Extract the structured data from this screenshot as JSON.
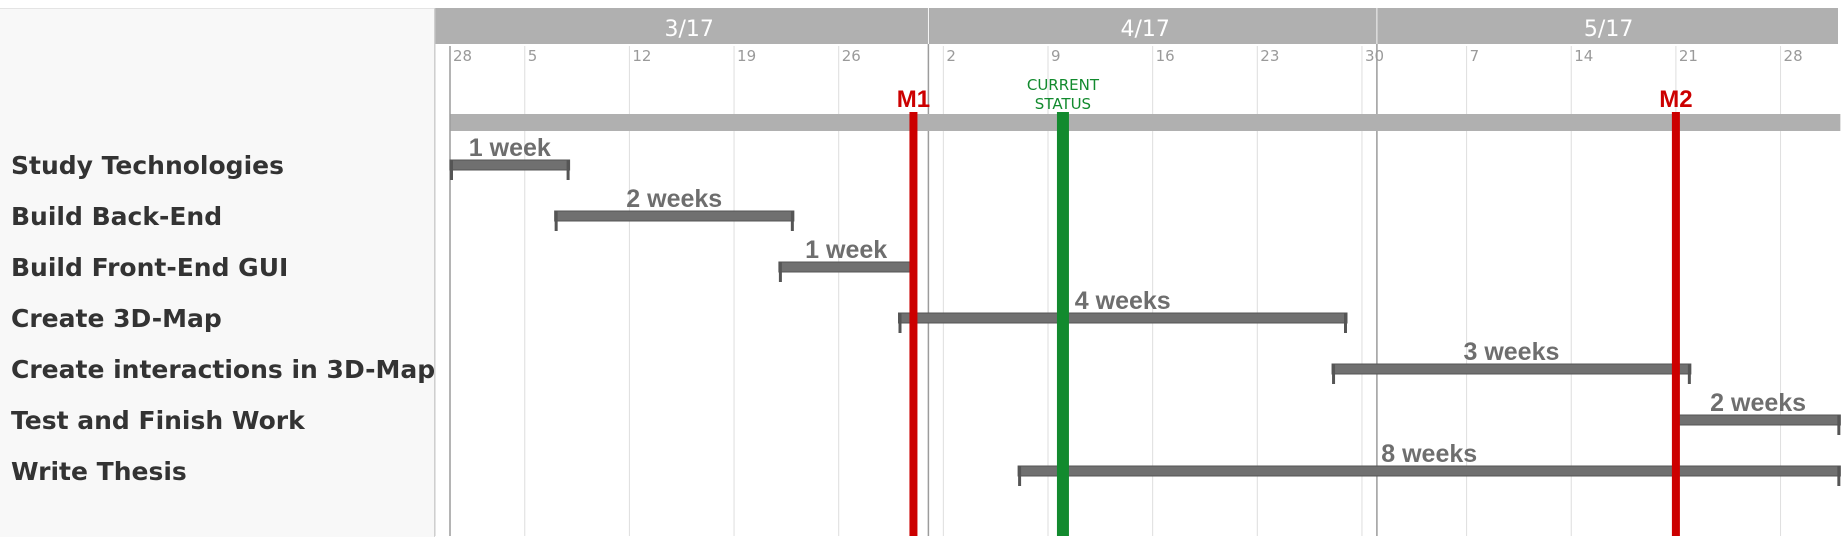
{
  "chart_data": {
    "type": "gantt",
    "timeline_start": "2017-02-28",
    "timeline_end": "2017-06-01",
    "months": [
      {
        "label": "3/17",
        "start": "2017-03-01",
        "end": "2017-03-31"
      },
      {
        "label": "4/17",
        "start": "2017-04-01",
        "end": "2017-04-30"
      },
      {
        "label": "5/17",
        "start": "2017-05-01",
        "end": "2017-06-01"
      }
    ],
    "day_ticks": [
      {
        "label": "28",
        "date": "2017-02-28"
      },
      {
        "label": "5",
        "date": "2017-03-05"
      },
      {
        "label": "12",
        "date": "2017-03-12"
      },
      {
        "label": "19",
        "date": "2017-03-19"
      },
      {
        "label": "26",
        "date": "2017-03-26"
      },
      {
        "label": "2",
        "date": "2017-04-02"
      },
      {
        "label": "9",
        "date": "2017-04-09"
      },
      {
        "label": "16",
        "date": "2017-04-16"
      },
      {
        "label": "23",
        "date": "2017-04-23"
      },
      {
        "label": "30",
        "date": "2017-04-30"
      },
      {
        "label": "7",
        "date": "2017-05-07"
      },
      {
        "label": "14",
        "date": "2017-05-14"
      },
      {
        "label": "21",
        "date": "2017-05-21"
      },
      {
        "label": "28",
        "date": "2017-05-28"
      }
    ],
    "summary_bar": {
      "start": "2017-02-28",
      "end": "2017-06-01"
    },
    "tasks": [
      {
        "name": "Study Technologies",
        "start": "2017-02-28",
        "end": "2017-03-08",
        "duration_label": "1 week"
      },
      {
        "name": "Build Back-End",
        "start": "2017-03-07",
        "end": "2017-03-23",
        "duration_label": "2 weeks"
      },
      {
        "name": "Build Front-End GUI",
        "start": "2017-03-22",
        "end": "2017-03-31",
        "duration_label": "1 week"
      },
      {
        "name": "Create 3D-Map",
        "start": "2017-03-30",
        "end": "2017-04-29",
        "duration_label": "4 weeks"
      },
      {
        "name": "Create interactions in 3D-Map",
        "start": "2017-04-28",
        "end": "2017-05-22",
        "duration_label": "3 weeks"
      },
      {
        "name": "Test and Finish Work",
        "start": "2017-05-21",
        "end": "2017-06-01",
        "duration_label": "2 weeks"
      },
      {
        "name": "Write Thesis",
        "start": "2017-04-07",
        "end": "2017-06-01",
        "duration_label": "8 weeks"
      }
    ],
    "milestones": [
      {
        "label": "M1",
        "date": "2017-03-31"
      },
      {
        "label": "M2",
        "date": "2017-05-21"
      }
    ],
    "current_status": {
      "label_lines": [
        "CURRENT",
        "STATUS"
      ],
      "date": "2017-04-10"
    },
    "colors": {
      "header": "#b0b0b0",
      "task_bar": "#707070",
      "milestone": "#cc0000",
      "current_status": "#128a2e",
      "summary_bar": "#b0b0b0"
    }
  }
}
